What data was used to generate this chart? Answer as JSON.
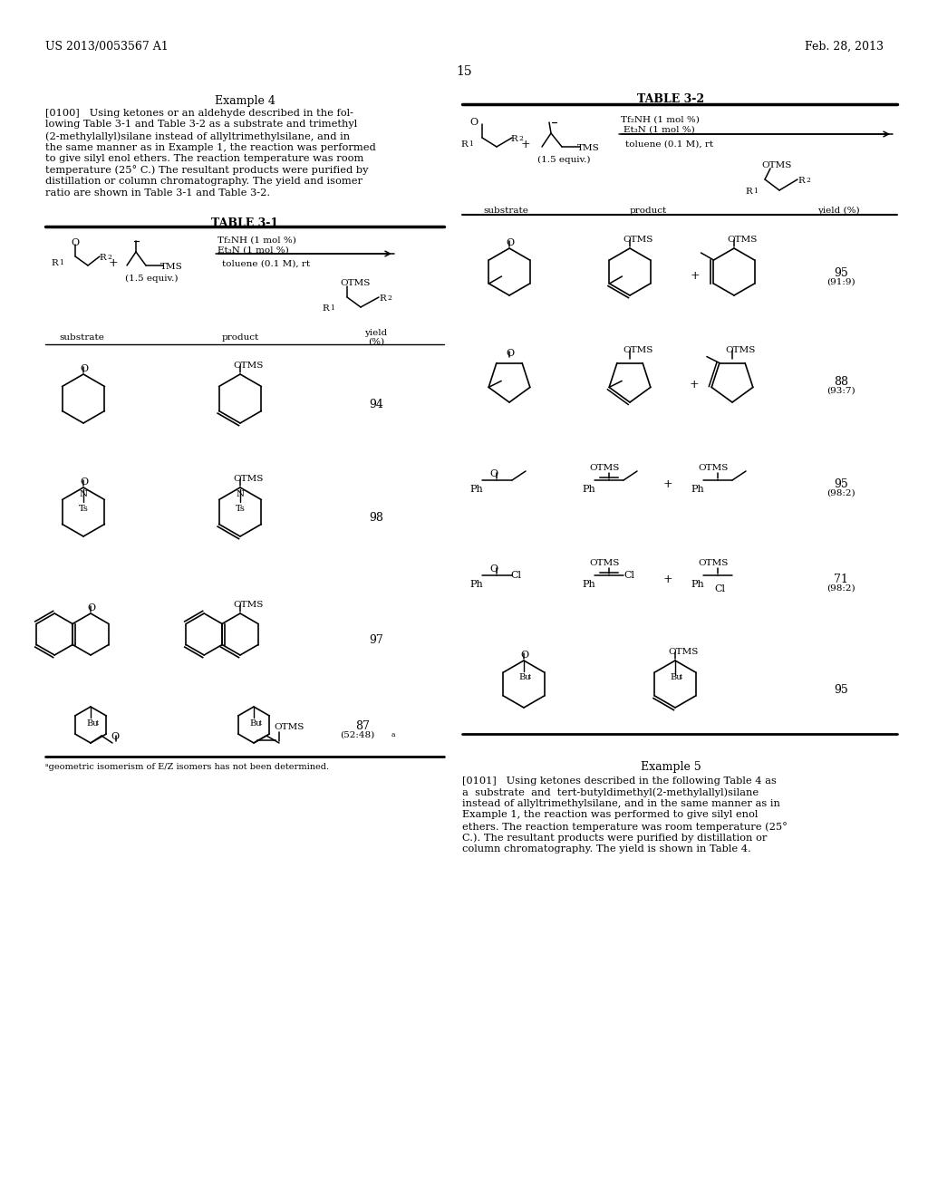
{
  "page_number": "15",
  "header_left": "US 2013/0053567 A1",
  "header_right": "Feb. 28, 2013",
  "bg_color": "#ffffff",
  "example4_title": "Example 4",
  "table31_title": "TABLE 3-1",
  "table32_title": "TABLE 3-2",
  "example5_title": "Example 5",
  "para0100_lines": [
    "[0100]   Using ketones or an aldehyde described in the fol-",
    "lowing Table 3-1 and Table 3-2 as a substrate and trimethyl",
    "(2-methylallyl)silane instead of allyltrimethylsilane, and in",
    "the same manner as in Example 1, the reaction was performed",
    "to give silyl enol ethers. The reaction temperature was room",
    "temperature (25° C.) The resultant products were purified by",
    "distillation or column chromatography. The yield and isomer",
    "ratio are shown in Table 3-1 and Table 3-2."
  ],
  "para0101_lines": [
    "[0101]   Using ketones described in the following Table 4 as",
    "a  substrate  and  tert-butyldimethyl(2-methylallyl)silane",
    "instead of allyltrimethylsilane, and in the same manner as in",
    "Example 1, the reaction was performed to give silyl enol",
    "ethers. The reaction temperature was room temperature (25°",
    "C.). The resultant products were purified by distillation or",
    "column chromatography. The yield is shown in Table 4."
  ],
  "footnote": "ᵃgeometric isomerism of E/Z isomers has not been determined."
}
